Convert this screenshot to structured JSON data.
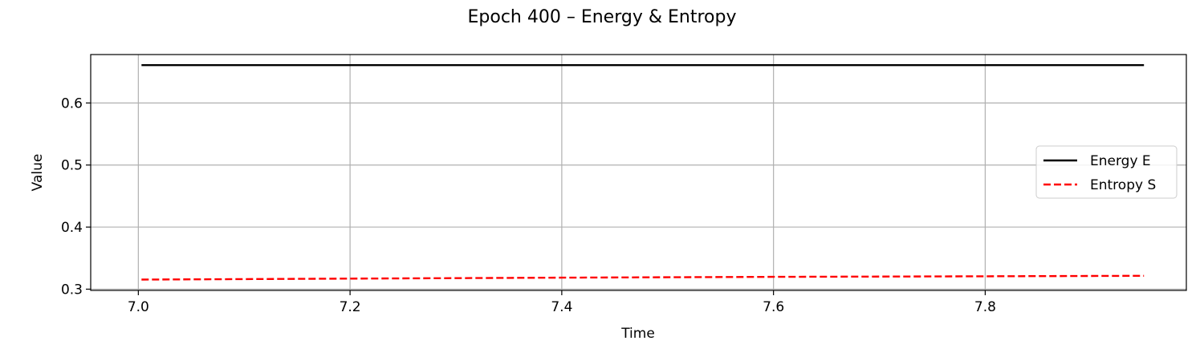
{
  "chart_data": {
    "type": "line",
    "title": "Epoch 400 – Energy & Entropy",
    "xlabel": "Time",
    "ylabel": "Value",
    "xlim": [
      6.955,
      7.99
    ],
    "ylim": [
      0.298,
      0.678
    ],
    "xticks": [
      "7.0",
      "7.2",
      "7.4",
      "7.6",
      "7.8"
    ],
    "yticks": [
      "0.3",
      "0.4",
      "0.5",
      "0.6"
    ],
    "grid": true,
    "legend_position": "center-right",
    "series": [
      {
        "name": "Energy E",
        "color": "#000000",
        "style": "solid",
        "x": [
          7.003,
          7.2,
          7.4,
          7.6,
          7.8,
          7.95
        ],
        "y": [
          0.661,
          0.661,
          0.661,
          0.661,
          0.661,
          0.661
        ]
      },
      {
        "name": "Entropy S",
        "color": "#ff0000",
        "style": "dashed",
        "x": [
          7.003,
          7.2,
          7.4,
          7.6,
          7.8,
          7.95
        ],
        "y": [
          0.3155,
          0.317,
          0.3185,
          0.3198,
          0.3208,
          0.3215
        ]
      }
    ]
  }
}
